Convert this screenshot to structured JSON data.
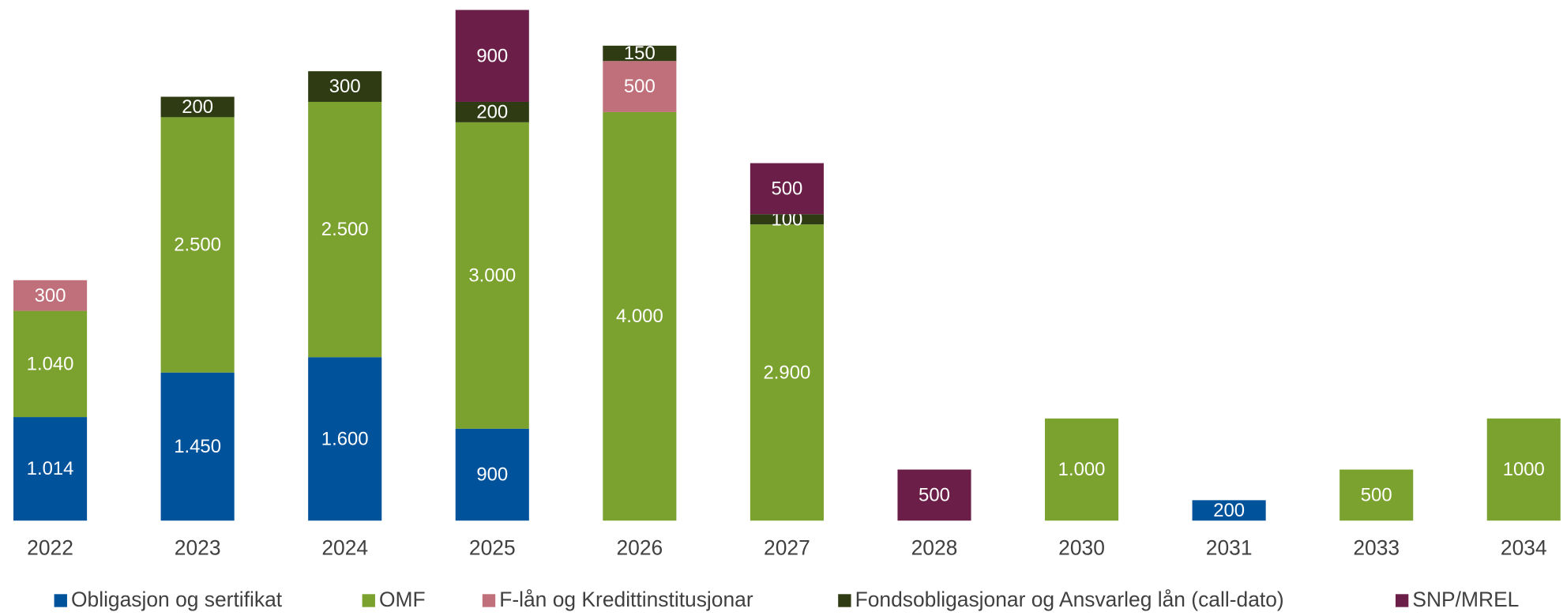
{
  "chart_data": {
    "type": "stacked_bar",
    "categories": [
      "2022",
      "2023",
      "2024",
      "2025",
      "2026",
      "2027",
      "2028",
      "2030",
      "2031",
      "2033",
      "2034"
    ],
    "series": [
      {
        "name": "Obligasjon og sertifikat",
        "color": "#00529b",
        "values": [
          1014,
          1450,
          1600,
          900,
          null,
          null,
          null,
          null,
          200,
          null,
          null
        ],
        "value_labels": [
          "1.014",
          "1.450",
          "1.600",
          "900",
          null,
          null,
          null,
          null,
          "200",
          null,
          null
        ]
      },
      {
        "name": "OMF",
        "color": "#7ba22f",
        "values": [
          1040,
          2500,
          2500,
          3000,
          4000,
          2900,
          null,
          1000,
          null,
          500,
          1000
        ],
        "value_labels": [
          "1.040",
          "2.500",
          "2.500",
          "3.000",
          "4.000",
          "2.900",
          null,
          "1.000",
          null,
          "500",
          "1000"
        ]
      },
      {
        "name": "F-lån og Kredittinstitusjonar",
        "color": "#c0707a",
        "values": [
          300,
          null,
          null,
          null,
          500,
          null,
          null,
          null,
          null,
          null,
          null
        ]
      },
      {
        "name": "Fondsobligasjonar og Ansvarleg lån (call-dato)",
        "color": "#2f3b12",
        "values": [
          null,
          200,
          300,
          200,
          150,
          100,
          null,
          null,
          null,
          null,
          null
        ]
      },
      {
        "name": "SNP/MREL",
        "color": "#6b1f48",
        "values": [
          null,
          null,
          null,
          900,
          null,
          500,
          500,
          null,
          null,
          null,
          null
        ]
      }
    ]
  }
}
